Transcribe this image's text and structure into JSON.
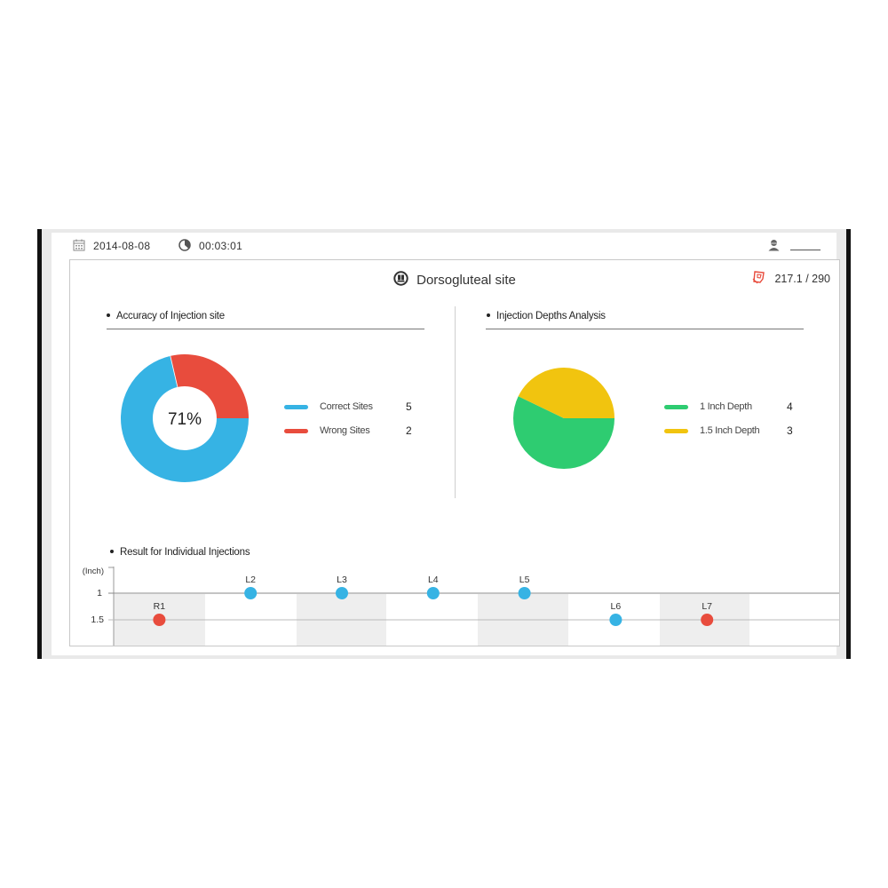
{
  "topbar": {
    "date": "2014-08-08",
    "date_icon": "calendar-icon",
    "elapsed": "00:03:01",
    "elapsed_icon": "clock-icon",
    "user_icon": "user-icon",
    "user_name": "_____"
  },
  "header": {
    "title": "Dorsogluteal site",
    "title_icon": "dorsogluteal-site-icon",
    "score": "217.1 / 290",
    "score_icon": "score-icon"
  },
  "colors": {
    "blue": "#36b3e4",
    "red": "#e84c3d",
    "green": "#2ecc71",
    "yellow": "#f1c40f",
    "shade": "#eeeeee"
  },
  "sections": {
    "accuracy": {
      "heading": "Accuracy of Injection site",
      "center_label": "71%",
      "legend": [
        {
          "label": "Correct Sites",
          "value": "5",
          "color": "#36b3e4"
        },
        {
          "label": "Wrong Sites",
          "value": "2",
          "color": "#e84c3d"
        }
      ]
    },
    "depths": {
      "heading": "Injection Depths Analysis",
      "legend": [
        {
          "label": "1 Inch Depth",
          "value": "4",
          "color": "#2ecc71"
        },
        {
          "label": "1.5 Inch Depth",
          "value": "3",
          "color": "#f1c40f"
        }
      ]
    },
    "individual": {
      "heading": "Result for Individual Injections",
      "y_unit": "(Inch)",
      "y_ticks": [
        "1",
        "1.5"
      ]
    }
  },
  "chart_data": [
    {
      "type": "pie",
      "title": "Accuracy of Injection site",
      "style": "donut",
      "categories": [
        "Correct Sites",
        "Wrong Sites"
      ],
      "values": [
        5,
        2
      ],
      "colors": [
        "#36b3e4",
        "#e84c3d"
      ],
      "center_label": "71%",
      "legend_position": "right"
    },
    {
      "type": "pie",
      "title": "Injection Depths Analysis",
      "categories": [
        "1 Inch Depth",
        "1.5 Inch Depth"
      ],
      "values": [
        4,
        3
      ],
      "colors": [
        "#2ecc71",
        "#f1c40f"
      ],
      "legend_position": "right"
    },
    {
      "type": "scatter",
      "title": "Result for Individual Injections",
      "ylabel": "(Inch)",
      "y_ticks": [
        1,
        1.5
      ],
      "y_inverted": true,
      "points": [
        {
          "label": "R1",
          "depth": 1.5,
          "result": "wrong",
          "color": "#e84c3d"
        },
        {
          "label": "L2",
          "depth": 1,
          "result": "correct",
          "color": "#36b3e4"
        },
        {
          "label": "L3",
          "depth": 1,
          "result": "correct",
          "color": "#36b3e4"
        },
        {
          "label": "L4",
          "depth": 1,
          "result": "correct",
          "color": "#36b3e4"
        },
        {
          "label": "L5",
          "depth": 1,
          "result": "correct",
          "color": "#36b3e4"
        },
        {
          "label": "L6",
          "depth": 1.5,
          "result": "correct",
          "color": "#36b3e4"
        },
        {
          "label": "L7",
          "depth": 1.5,
          "result": "wrong",
          "color": "#e84c3d"
        }
      ]
    }
  ]
}
